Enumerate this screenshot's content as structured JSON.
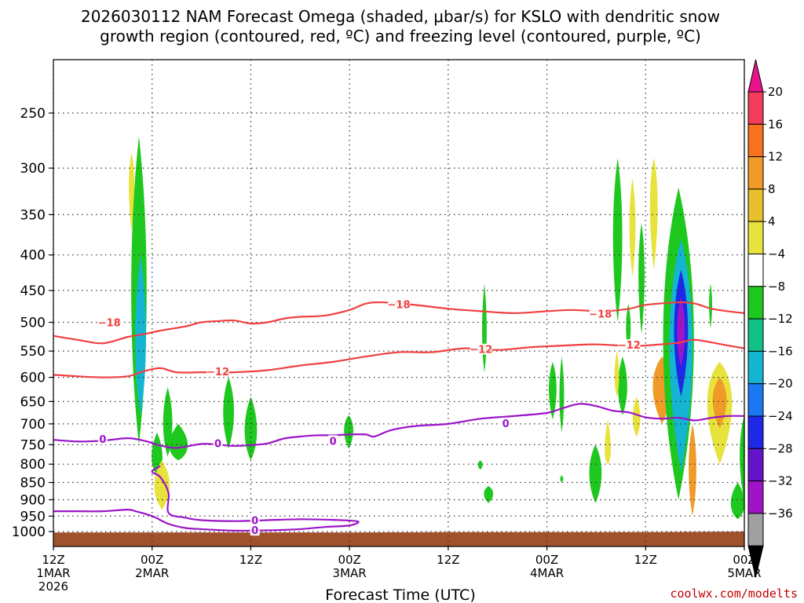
{
  "chart_data": {
    "type": "heatmap",
    "title_lines": [
      "2026030112 NAM Forecast Omega (shaded, μbar/s) for KSLO with dendritic snow",
      "growth region (contoured, red, ºC) and freezing level (contoured, purple, ºC)"
    ],
    "xlabel": "Forecast Time (UTC)",
    "ylabel": "",
    "credit": "coolwx.com/modelts",
    "y_axis": {
      "scale": "pressure (hPa, log)",
      "ticks": [
        "250",
        "300",
        "350",
        "400",
        "450",
        "500",
        "550",
        "600",
        "650",
        "700",
        "750",
        "800",
        "850",
        "900",
        "950",
        "1000"
      ],
      "range": [
        200,
        1025
      ]
    },
    "x_axis": {
      "range_hours": [
        0,
        84
      ],
      "ticks": [
        {
          "hour": 0,
          "lines": [
            "12Z",
            "1MAR",
            "2026"
          ]
        },
        {
          "hour": 12,
          "lines": [
            "00Z",
            "2MAR"
          ]
        },
        {
          "hour": 24,
          "lines": [
            "12Z"
          ]
        },
        {
          "hour": 36,
          "lines": [
            "00Z",
            "3MAR"
          ]
        },
        {
          "hour": 48,
          "lines": [
            "12Z"
          ]
        },
        {
          "hour": 60,
          "lines": [
            "00Z",
            "4MAR"
          ]
        },
        {
          "hour": 72,
          "lines": [
            "12Z"
          ]
        },
        {
          "hour": 84,
          "lines": [
            "00Z",
            "5MAR"
          ]
        }
      ]
    },
    "grid": true,
    "colorbar": {
      "labels": [
        "20",
        "16",
        "12",
        "8",
        "4",
        "−4",
        "−8",
        "−12",
        "−16",
        "−20",
        "−24",
        "−28",
        "−32",
        "−36"
      ],
      "colors": [
        "#f23c5a",
        "#f7711f",
        "#f09a28",
        "#e8c02c",
        "#e8e23c",
        "#ffffff",
        "#1ec81e",
        "#12c088",
        "#14b4d2",
        "#1a78f0",
        "#1e28e6",
        "#6414c8",
        "#a014c8",
        "#a0a0a0"
      ],
      "top_arrow_color": "#e8148c",
      "bottom_arrow_color": "#000000"
    },
    "terrain_color": "#a0522d",
    "surface_pressure_hpa": [
      [
        0,
        1003
      ],
      [
        36,
        1003
      ],
      [
        48,
        1002
      ],
      [
        72,
        1002
      ],
      [
        84,
        1000
      ]
    ],
    "omega_blobs": [
      {
        "hour": 9.5,
        "p_center": 310,
        "half_hours": 0.35,
        "p_range": [
          285,
          370
        ],
        "value": 6
      },
      {
        "hour": 10.4,
        "p_center": 450,
        "half_hours": 1.0,
        "p_range": [
          270,
          750
        ],
        "value": -6
      },
      {
        "hour": 10.6,
        "p_center": 530,
        "half_hours": 0.7,
        "p_range": [
          400,
          680
        ],
        "value": -14
      },
      {
        "hour": 13.9,
        "p_center": 700,
        "half_hours": 0.6,
        "p_range": [
          620,
          780
        ],
        "value": -6
      },
      {
        "hour": 12.6,
        "p_center": 790,
        "half_hours": 0.7,
        "p_range": [
          720,
          830
        ],
        "value": -6
      },
      {
        "hour": 15.2,
        "p_center": 760,
        "half_hours": 1.2,
        "p_range": [
          700,
          790
        ],
        "value": -6
      },
      {
        "hour": 13.2,
        "p_center": 860,
        "half_hours": 1.0,
        "p_range": [
          790,
          930
        ],
        "value": 6
      },
      {
        "hour": 21.3,
        "p_center": 670,
        "half_hours": 0.7,
        "p_range": [
          600,
          760
        ],
        "value": -6
      },
      {
        "hour": 24.0,
        "p_center": 720,
        "half_hours": 0.8,
        "p_range": [
          640,
          790
        ],
        "value": -6
      },
      {
        "hour": 35.9,
        "p_center": 710,
        "half_hours": 0.6,
        "p_range": [
          680,
          760
        ],
        "value": -6
      },
      {
        "hour": 52.4,
        "p_center": 520,
        "half_hours": 0.3,
        "p_range": [
          440,
          590
        ],
        "value": -6
      },
      {
        "hour": 52.9,
        "p_center": 880,
        "half_hours": 0.6,
        "p_range": [
          860,
          910
        ],
        "value": -6
      },
      {
        "hour": 51.9,
        "p_center": 800,
        "half_hours": 0.3,
        "p_range": [
          790,
          815
        ],
        "value": -6
      },
      {
        "hour": 60.7,
        "p_center": 620,
        "half_hours": 0.5,
        "p_range": [
          570,
          690
        ],
        "value": -6
      },
      {
        "hour": 61.8,
        "p_center": 640,
        "half_hours": 0.3,
        "p_range": [
          560,
          720
        ],
        "value": -6
      },
      {
        "hour": 61.8,
        "p_center": 840,
        "half_hours": 0.2,
        "p_range": [
          830,
          850
        ],
        "value": -6
      },
      {
        "hour": 65.9,
        "p_center": 820,
        "half_hours": 0.8,
        "p_range": [
          750,
          910
        ],
        "value": -6
      },
      {
        "hour": 67.4,
        "p_center": 780,
        "half_hours": 0.4,
        "p_range": [
          690,
          800
        ],
        "value": 6
      },
      {
        "hour": 68.6,
        "p_center": 370,
        "half_hours": 0.6,
        "p_range": [
          290,
          500
        ],
        "value": -6
      },
      {
        "hour": 70.4,
        "p_center": 360,
        "half_hours": 0.4,
        "p_range": [
          310,
          430
        ],
        "value": 6
      },
      {
        "hour": 71.5,
        "p_center": 420,
        "half_hours": 0.4,
        "p_range": [
          360,
          520
        ],
        "value": -6
      },
      {
        "hour": 69.2,
        "p_center": 620,
        "half_hours": 0.6,
        "p_range": [
          560,
          680
        ],
        "value": -6
      },
      {
        "hour": 68.5,
        "p_center": 600,
        "half_hours": 0.3,
        "p_range": [
          550,
          640
        ],
        "value": 6
      },
      {
        "hour": 69.9,
        "p_center": 510,
        "half_hours": 0.3,
        "p_range": [
          470,
          550
        ],
        "value": -6
      },
      {
        "hour": 70.9,
        "p_center": 690,
        "half_hours": 0.5,
        "p_range": [
          640,
          730
        ],
        "value": 6
      },
      {
        "hour": 73.0,
        "p_center": 330,
        "half_hours": 0.5,
        "p_range": [
          290,
          420
        ],
        "value": 6
      },
      {
        "hour": 74.0,
        "p_center": 610,
        "half_hours": 1.2,
        "p_range": [
          560,
          700
        ],
        "value": 8
      },
      {
        "hour": 76.0,
        "p_center": 520,
        "half_hours": 2.0,
        "p_range": [
          320,
          900
        ],
        "value": -6
      },
      {
        "hour": 76.3,
        "p_center": 520,
        "half_hours": 1.5,
        "p_range": [
          380,
          820
        ],
        "value": -14
      },
      {
        "hour": 76.3,
        "p_center": 510,
        "half_hours": 0.9,
        "p_range": [
          420,
          640
        ],
        "value": -22
      },
      {
        "hour": 76.3,
        "p_center": 510,
        "half_hours": 0.5,
        "p_range": [
          460,
          580
        ],
        "value": -30
      },
      {
        "hour": 77.7,
        "p_center": 810,
        "half_hours": 0.5,
        "p_range": [
          700,
          950
        ],
        "value": 8
      },
      {
        "hour": 81.0,
        "p_center": 630,
        "half_hours": 1.6,
        "p_range": [
          570,
          800
        ],
        "value": 6
      },
      {
        "hour": 81.0,
        "p_center": 640,
        "half_hours": 0.9,
        "p_range": [
          600,
          710
        ],
        "value": 10
      },
      {
        "hour": 79.9,
        "p_center": 470,
        "half_hours": 0.2,
        "p_range": [
          440,
          510
        ],
        "value": -6
      },
      {
        "hour": 83.2,
        "p_center": 920,
        "half_hours": 0.9,
        "p_range": [
          850,
          960
        ],
        "value": -6
      },
      {
        "hour": 84.0,
        "p_center": 770,
        "half_hours": 0.6,
        "p_range": [
          680,
          900
        ],
        "value": -6
      }
    ],
    "contours": [
      {
        "name": "-18 ºC",
        "color": "#f04040",
        "label": "−18",
        "label_at": [
          [
            6.8,
            501
          ],
          [
            42.0,
            472
          ],
          [
            66.5,
            487
          ]
        ],
        "points": [
          [
            0,
            523
          ],
          [
            3,
            530
          ],
          [
            6,
            536
          ],
          [
            9,
            525
          ],
          [
            11,
            520
          ],
          [
            13,
            514
          ],
          [
            16,
            507
          ],
          [
            18,
            500
          ],
          [
            20,
            498
          ],
          [
            22,
            497
          ],
          [
            24,
            502
          ],
          [
            26,
            500
          ],
          [
            28,
            494
          ],
          [
            30,
            491
          ],
          [
            33,
            489
          ],
          [
            36,
            480
          ],
          [
            38,
            470
          ],
          [
            40,
            468
          ],
          [
            44,
            472
          ],
          [
            48,
            478
          ],
          [
            52,
            482
          ],
          [
            56,
            485
          ],
          [
            60,
            482
          ],
          [
            63,
            480
          ],
          [
            67,
            482
          ],
          [
            70,
            478
          ],
          [
            72,
            472
          ],
          [
            76,
            468
          ],
          [
            78,
            470
          ],
          [
            80,
            478
          ],
          [
            82,
            482
          ],
          [
            84,
            485
          ]
        ]
      },
      {
        "name": "-12 ºC",
        "color": "#f04040",
        "label": "−12",
        "label_at": [
          [
            20.0,
            590
          ],
          [
            52.0,
            548
          ],
          [
            70.0,
            540
          ]
        ],
        "points": [
          [
            0,
            595
          ],
          [
            3,
            598
          ],
          [
            6,
            600
          ],
          [
            9,
            598
          ],
          [
            11,
            588
          ],
          [
            13,
            582
          ],
          [
            15,
            590
          ],
          [
            18,
            590
          ],
          [
            22,
            590
          ],
          [
            26,
            586
          ],
          [
            30,
            577
          ],
          [
            34,
            570
          ],
          [
            38,
            560
          ],
          [
            42,
            552
          ],
          [
            46,
            552
          ],
          [
            50,
            545
          ],
          [
            54,
            548
          ],
          [
            58,
            543
          ],
          [
            62,
            540
          ],
          [
            66,
            538
          ],
          [
            70,
            541
          ],
          [
            72,
            540
          ],
          [
            76,
            535
          ],
          [
            78,
            530
          ],
          [
            82,
            540
          ],
          [
            84,
            545
          ]
        ]
      },
      {
        "name": "0 ºC freezing level",
        "color": "#9b14c8",
        "label": "0",
        "label_at": [
          [
            6.0,
            738
          ],
          [
            20.0,
            748
          ],
          [
            34.0,
            742
          ],
          [
            55.0,
            700
          ]
        ],
        "points": [
          [
            0,
            738
          ],
          [
            3,
            742
          ],
          [
            6,
            740
          ],
          [
            9,
            734
          ],
          [
            11,
            740
          ],
          [
            13,
            752
          ],
          [
            15,
            758
          ],
          [
            18,
            748
          ],
          [
            20,
            750
          ],
          [
            22,
            753
          ],
          [
            24,
            751
          ],
          [
            26,
            747
          ],
          [
            28,
            735
          ],
          [
            30,
            730
          ],
          [
            32,
            727
          ],
          [
            34,
            727
          ],
          [
            36,
            725
          ],
          [
            38,
            725
          ],
          [
            39,
            730
          ],
          [
            41,
            715
          ],
          [
            44,
            705
          ],
          [
            48,
            700
          ],
          [
            52,
            688
          ],
          [
            56,
            682
          ],
          [
            60,
            675
          ],
          [
            62,
            664
          ],
          [
            64,
            655
          ],
          [
            66,
            660
          ],
          [
            68,
            670
          ],
          [
            70,
            674
          ],
          [
            72,
            685
          ],
          [
            74,
            688
          ],
          [
            76,
            686
          ],
          [
            78,
            692
          ],
          [
            80,
            686
          ],
          [
            82,
            682
          ],
          [
            84,
            682
          ]
        ]
      },
      {
        "name": "0 ºC lower",
        "color": "#9b14c8",
        "label": "0",
        "label_at": [
          [
            24.5,
            966
          ],
          [
            24.5,
            998
          ]
        ],
        "points": [
          [
            0,
            935
          ],
          [
            3,
            935
          ],
          [
            6,
            935
          ],
          [
            9,
            930
          ],
          [
            10,
            935
          ],
          [
            12,
            950
          ],
          [
            14,
            975
          ],
          [
            16,
            988
          ],
          [
            18,
            992
          ],
          [
            22,
            997
          ],
          [
            26,
            996
          ],
          [
            30,
            992
          ],
          [
            33,
            985
          ],
          [
            36,
            980
          ],
          [
            37,
            967
          ],
          [
            34,
            962
          ],
          [
            30,
            960
          ],
          [
            26,
            963
          ],
          [
            22,
            966
          ],
          [
            18,
            963
          ],
          [
            16,
            955
          ],
          [
            14,
            940
          ],
          [
            14,
            880
          ],
          [
            13,
            835
          ],
          [
            12,
            820
          ],
          [
            13,
            805
          ]
        ]
      }
    ]
  }
}
